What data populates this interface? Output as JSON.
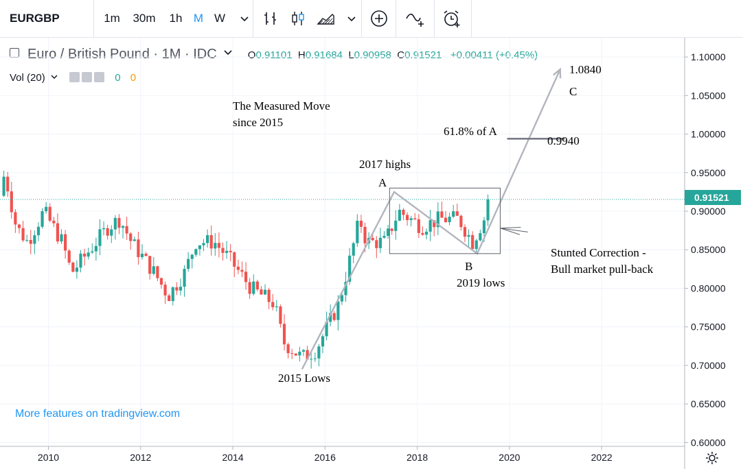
{
  "toolbar": {
    "symbol": "EURGBP",
    "intervals": [
      "1m",
      "30m",
      "1h",
      "M",
      "W"
    ],
    "active_interval": "M"
  },
  "legend": {
    "title": "Euro / British Pound · 1M · IDC",
    "open_label": "O",
    "open": "0.91101",
    "high_label": "H",
    "high": "0.91684",
    "low_label": "L",
    "low": "0.90958",
    "close_label": "C",
    "close": "0.91521",
    "change": "+0.00411 (+0.45%)",
    "volume_label": "Vol (20)",
    "volume_a": "0",
    "volume_b": "0"
  },
  "current_price": "0.91521",
  "link_text": "More features on tradingview.com",
  "colors": {
    "up": "#26a69a",
    "down": "#ef5350",
    "accent": "#2196f3",
    "annotation_line": "#b2b5be"
  },
  "annotations": {
    "measured_move_1": "The Measured Move",
    "measured_move_2": "since 2015",
    "highs_2017": "2017 highs",
    "point_a": "A",
    "point_b": "B",
    "point_c": "C",
    "lows_2019": "2019 lows",
    "lows_2015": "2015 Lows",
    "fib_label": "61.8% of A",
    "fib_value": "0.9940",
    "target_value": "1.0840",
    "stunted_1": "Stunted Correction -",
    "stunted_2": "Bull market pull-back"
  },
  "chart_data": {
    "type": "candlestick",
    "title": "Euro / British Pound · 1M · IDC",
    "symbol": "EURGBP",
    "interval": "1M",
    "y_axis_ticks": [
      "1.10000",
      "1.05000",
      "1.00000",
      "0.95000",
      "0.90000",
      "0.85000",
      "0.80000",
      "0.75000",
      "0.70000",
      "0.65000",
      "0.60000"
    ],
    "x_axis_ticks": [
      "2010",
      "2012",
      "2014",
      "2016",
      "2018",
      "2020",
      "2022"
    ],
    "ylim": [
      0.595,
      1.125
    ],
    "xlim": [
      2008.95,
      2023.8
    ],
    "last_close": 0.91521,
    "anchors": [
      {
        "t": 2008.95,
        "v": 0.92
      },
      {
        "t": 2009.05,
        "v": 0.95
      },
      {
        "t": 2009.3,
        "v": 0.88
      },
      {
        "t": 2009.55,
        "v": 0.86
      },
      {
        "t": 2009.9,
        "v": 0.9
      },
      {
        "t": 2010.3,
        "v": 0.86
      },
      {
        "t": 2010.5,
        "v": 0.82
      },
      {
        "t": 2010.9,
        "v": 0.85
      },
      {
        "t": 2011.3,
        "v": 0.88
      },
      {
        "t": 2011.55,
        "v": 0.89
      },
      {
        "t": 2011.8,
        "v": 0.86
      },
      {
        "t": 2012.3,
        "v": 0.82
      },
      {
        "t": 2012.6,
        "v": 0.79
      },
      {
        "t": 2012.95,
        "v": 0.82
      },
      {
        "t": 2013.2,
        "v": 0.86
      },
      {
        "t": 2013.6,
        "v": 0.86
      },
      {
        "t": 2013.9,
        "v": 0.84
      },
      {
        "t": 2014.4,
        "v": 0.8
      },
      {
        "t": 2014.9,
        "v": 0.78
      },
      {
        "t": 2015.1,
        "v": 0.73
      },
      {
        "t": 2015.5,
        "v": 0.71
      },
      {
        "t": 2015.8,
        "v": 0.72
      },
      {
        "t": 2016.3,
        "v": 0.78
      },
      {
        "t": 2016.55,
        "v": 0.84
      },
      {
        "t": 2016.75,
        "v": 0.89
      },
      {
        "t": 2016.9,
        "v": 0.86
      },
      {
        "t": 2017.3,
        "v": 0.86
      },
      {
        "t": 2017.6,
        "v": 0.9
      },
      {
        "t": 2018.1,
        "v": 0.88
      },
      {
        "t": 2018.5,
        "v": 0.89
      },
      {
        "t": 2018.9,
        "v": 0.89
      },
      {
        "t": 2019.2,
        "v": 0.86
      },
      {
        "t": 2019.45,
        "v": 0.89
      },
      {
        "t": 2019.6,
        "v": 0.915
      }
    ],
    "drawings": {
      "abc_path": [
        {
          "t": 2015.5,
          "v": 0.695
        },
        {
          "t": 2017.5,
          "v": 0.925
        },
        {
          "t": 2019.3,
          "v": 0.845
        },
        {
          "t": 2021.1,
          "v": 1.084
        }
      ],
      "range_box": {
        "t0": 2017.4,
        "t1": 2019.8,
        "v_low": 0.845,
        "v_high": 0.93
      },
      "fib_line": {
        "t0": 2019.95,
        "t1": 2021.2,
        "v": 0.994
      },
      "arrow": {
        "from_t": 2020.4,
        "from_v": 0.873,
        "to_t": 2019.8,
        "to_v": 0.878
      }
    }
  }
}
